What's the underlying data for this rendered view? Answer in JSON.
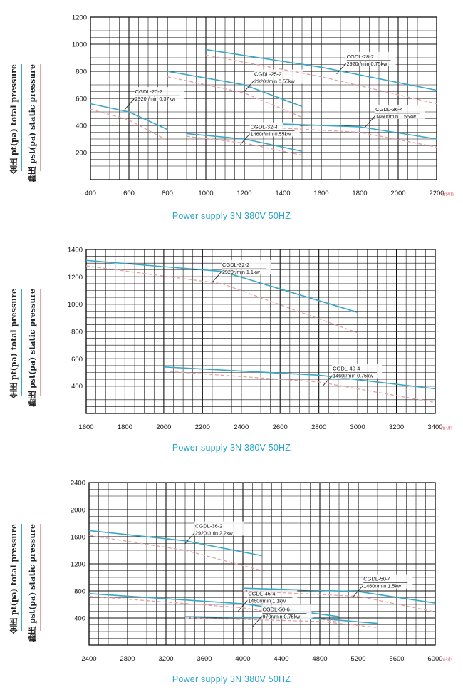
{
  "labels": {
    "total_pressure": "全压 pt(pa) total pressure",
    "static_pressure": "静压 pst(pa) static pressure",
    "x_unit": "m³/h",
    "power_supply": "Power supply   3N 380V  50HZ"
  },
  "colors": {
    "total": "#3aa7c4",
    "static": "#e6a1a7",
    "grid": "#111111",
    "text": "#111111"
  },
  "chart_data": [
    {
      "type": "line",
      "xlim": [
        400,
        2200
      ],
      "ylim": [
        0,
        1200
      ],
      "x_ticks": [
        400,
        600,
        800,
        1000,
        1200,
        1400,
        1600,
        1800,
        2000,
        2200
      ],
      "y_ticks": [
        200,
        400,
        600,
        800,
        1000,
        1200
      ],
      "x_minor": 50,
      "y_minor": 50,
      "grid": true,
      "series": [
        {
          "name": "CGDL-20-2",
          "spec": "2920r/min 0.37kw",
          "total": [
            [
              400,
              560
            ],
            [
              600,
              500
            ],
            [
              800,
              370
            ]
          ],
          "static": [
            [
              400,
              520
            ],
            [
              600,
              440
            ],
            [
              800,
              290
            ]
          ],
          "label_at": [
            580,
            520
          ]
        },
        {
          "name": "CGDL-25-2",
          "spec": "2920r/min 0.55kw",
          "total": [
            [
              800,
              800
            ],
            [
              1200,
              700
            ],
            [
              1500,
              540
            ]
          ],
          "static": [
            [
              800,
              760
            ],
            [
              1200,
              640
            ],
            [
              1500,
              460
            ]
          ],
          "label_at": [
            1200,
            650
          ]
        },
        {
          "name": "CGDL-28-2",
          "spec": "2920r/min 0.75kw",
          "total": [
            [
              1000,
              960
            ],
            [
              1600,
              830
            ],
            [
              2200,
              660
            ]
          ],
          "static": [
            [
              1000,
              920
            ],
            [
              1600,
              760
            ],
            [
              2200,
              560
            ]
          ],
          "label_at": [
            1680,
            780
          ]
        },
        {
          "name": "CGDL-32-4",
          "spec": "1460r/min 0.55kw",
          "total": [
            [
              900,
              340
            ],
            [
              1200,
              300
            ],
            [
              1500,
              210
            ]
          ],
          "static": [
            [
              900,
              320
            ],
            [
              1200,
              270
            ],
            [
              1500,
              180
            ]
          ],
          "label_at": [
            1180,
            260
          ]
        },
        {
          "name": "CGDL-36-4",
          "spec": "1460r/min 0.55kw",
          "total": [
            [
              1400,
              410
            ],
            [
              1800,
              390
            ],
            [
              2200,
              300
            ]
          ],
          "static": [
            [
              1400,
              380
            ],
            [
              1800,
              350
            ],
            [
              2200,
              240
            ]
          ],
          "label_at": [
            1830,
            390
          ]
        }
      ]
    },
    {
      "type": "line",
      "xlim": [
        1600,
        3400
      ],
      "ylim": [
        200,
        1400
      ],
      "x_ticks": [
        1600,
        1800,
        2000,
        2200,
        2400,
        2600,
        2800,
        3000,
        3200,
        3400
      ],
      "y_ticks": [
        400,
        600,
        800,
        1000,
        1200,
        1400
      ],
      "x_minor": 50,
      "y_minor": 50,
      "grid": true,
      "series": [
        {
          "name": "CGDL-32-2",
          "spec": "2920r/min 1.1kw",
          "total": [
            [
              1600,
              1320
            ],
            [
              2300,
              1240
            ],
            [
              3000,
              940
            ]
          ],
          "static": [
            [
              1600,
              1280
            ],
            [
              2300,
              1150
            ],
            [
              3000,
              790
            ]
          ],
          "label_at": [
            2250,
            1160
          ]
        },
        {
          "name": "CGDL-40-4",
          "spec": "1460r/min 0.75kw",
          "total": [
            [
              2000,
              540
            ],
            [
              2800,
              480
            ],
            [
              3400,
              380
            ]
          ],
          "static": [
            [
              2000,
              510
            ],
            [
              2800,
              430
            ],
            [
              3400,
              280
            ]
          ],
          "label_at": [
            2820,
            400
          ]
        }
      ]
    },
    {
      "type": "line",
      "xlim": [
        2400,
        6000
      ],
      "ylim": [
        0,
        2400
      ],
      "x_ticks": [
        2400,
        2800,
        3200,
        3600,
        4000,
        4400,
        4800,
        5200,
        5600,
        6000
      ],
      "y_ticks": [
        400,
        800,
        1200,
        1600,
        2000,
        2400
      ],
      "x_minor": 100,
      "y_minor": 100,
      "grid": true,
      "series": [
        {
          "name": "CGDL-36-2",
          "spec": "2920r/min 2.2kw",
          "total": [
            [
              2400,
              1690
            ],
            [
              3400,
              1540
            ],
            [
              4200,
              1320
            ]
          ],
          "static": [
            [
              2400,
              1620
            ],
            [
              3400,
              1400
            ],
            [
              4200,
              1100
            ]
          ],
          "label_at": [
            3400,
            1500
          ]
        },
        {
          "name": "CGDL-45-4",
          "spec": "1460r/min 1.1kw",
          "total": [
            [
              2400,
              760
            ],
            [
              4000,
              610
            ],
            [
              5000,
              420
            ]
          ],
          "static": [
            [
              2400,
              720
            ],
            [
              4000,
              550
            ],
            [
              5000,
              340
            ]
          ],
          "label_at": [
            3950,
            500
          ]
        },
        {
          "name": "CGDL-50-4",
          "spec": "1460r/min 1.5kw",
          "total": [
            [
              4000,
              840
            ],
            [
              5200,
              790
            ],
            [
              6000,
              620
            ]
          ],
          "static": [
            [
              4000,
              800
            ],
            [
              5200,
              720
            ],
            [
              6000,
              490
            ]
          ],
          "label_at": [
            5150,
            720
          ]
        },
        {
          "name": "CGDL-50-6",
          "spec": "970r/min 0.75kw",
          "total": [
            [
              3400,
              420
            ],
            [
              4800,
              390
            ],
            [
              5400,
              320
            ]
          ],
          "static": [
            [
              3400,
              400
            ],
            [
              4800,
              350
            ],
            [
              5400,
              260
            ]
          ],
          "label_at": [
            4100,
            270
          ]
        }
      ]
    }
  ]
}
